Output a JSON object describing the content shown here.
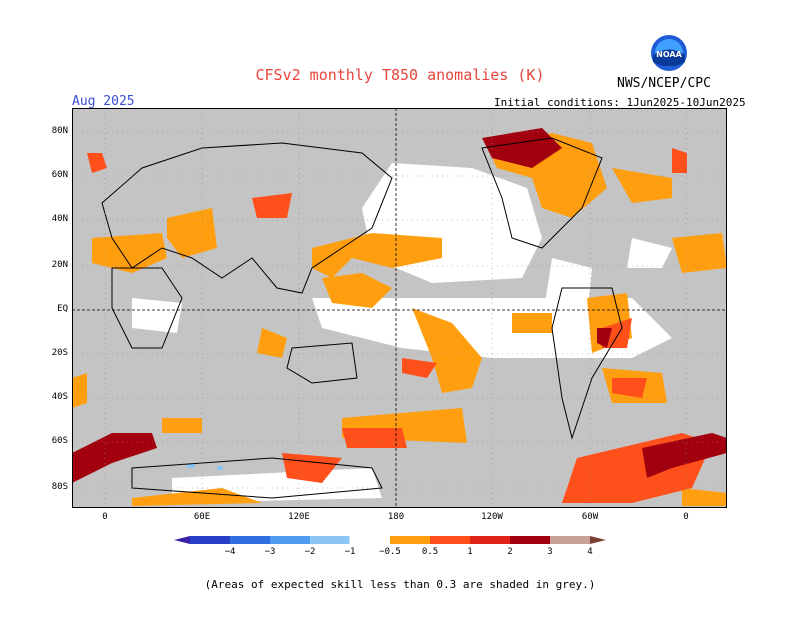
{
  "header": {
    "title": "CFSv2 monthly T850 anomalies (K)",
    "month": "Aug 2025",
    "org": "NWS/NCEP/CPC",
    "initial_conditions": "Initial conditions: 1Jun2025-10Jun2025",
    "logo_text": "NOAA"
  },
  "map": {
    "lat_labels": [
      "80N",
      "60N",
      "40N",
      "20N",
      "EQ",
      "20S",
      "40S",
      "60S",
      "80S"
    ],
    "lon_labels": [
      "0",
      "60E",
      "120E",
      "180",
      "120W",
      "60W",
      "0"
    ]
  },
  "colorbar": {
    "tick_labels": [
      "−4",
      "−3",
      "−2",
      "−1",
      "−0.5",
      "0.5",
      "1",
      "2",
      "3",
      "4"
    ],
    "colors": {
      "lt_m4": "#3a1fa8",
      "m4_m3": "#2a3fc7",
      "m3_m2": "#2f6fdf",
      "m2_m1": "#4f9bef",
      "m1_m05": "#8cc6f5",
      "p05_p1": "#ff9f10",
      "p1_p2": "#ff4f1a",
      "p2_p3": "#e2231a",
      "p3_p4": "#a3000f",
      "p4_p5": "#c8a096",
      "gt_p5": "#7a4036"
    }
  },
  "colors": {
    "skill_grey": "#c4c4c4",
    "land_outline": "#000000"
  },
  "caption": "(Areas of expected skill less than 0.3 are shaded in grey.)"
}
